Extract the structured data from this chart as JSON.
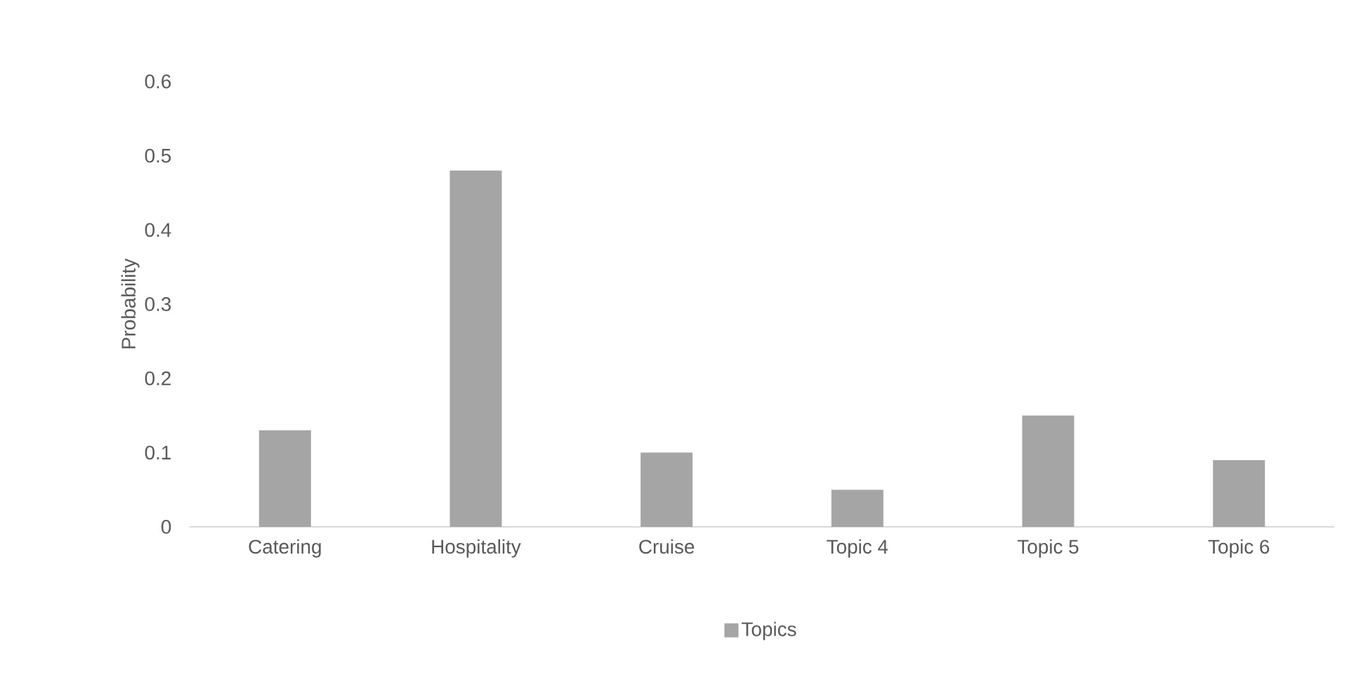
{
  "chart_data": {
    "type": "bar",
    "ylabel": "Probability",
    "categories": [
      "Catering",
      "Hospitality",
      "Cruise",
      "Topic 4",
      "Topic 5",
      "Topic 6"
    ],
    "series": [
      {
        "name": "Topics",
        "color": "#a5a5a5",
        "values": [
          0.13,
          0.48,
          0.1,
          0.05,
          0.15,
          0.09
        ]
      }
    ],
    "ylim": [
      0,
      0.6
    ],
    "yticks": [
      0,
      0.1,
      0.2,
      0.3,
      0.4,
      0.5,
      0.6
    ],
    "grid": false,
    "legend": "bottom"
  }
}
